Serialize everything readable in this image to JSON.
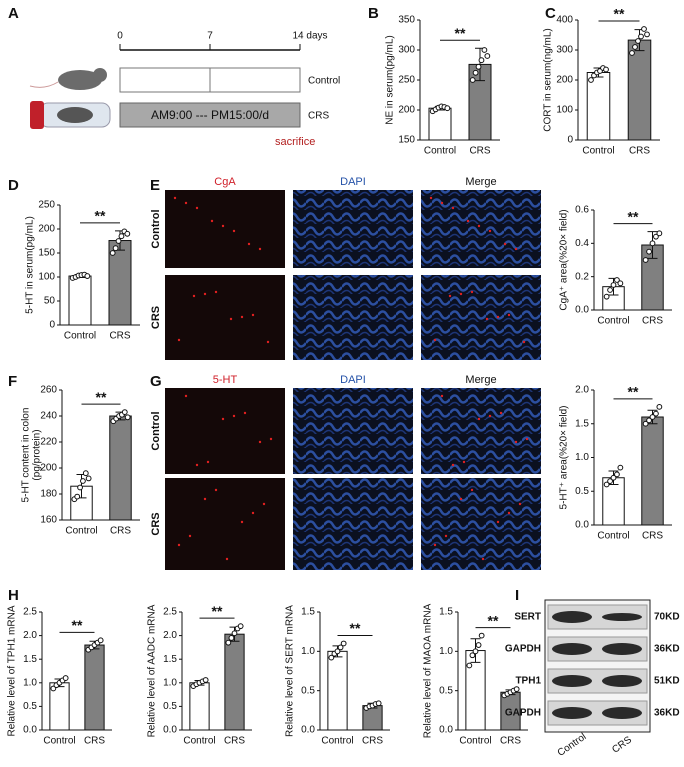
{
  "panel_labels": [
    "A",
    "B",
    "C",
    "D",
    "E",
    "F",
    "G",
    "H",
    "I"
  ],
  "timeline": {
    "day_labels": [
      "0",
      "7",
      "14 days"
    ],
    "groups": [
      "Control",
      "CRS"
    ],
    "schedule": "AM9:00 --- PM15:00/d",
    "endpoint": "sacrifice"
  },
  "image_panels": [
    {
      "stains": [
        "CgA",
        "DAPI",
        "Merge"
      ],
      "rows": [
        "Control",
        "CRS"
      ]
    },
    {
      "stains": [
        "5-HT",
        "DAPI",
        "Merge"
      ],
      "rows": [
        "Control",
        "CRS"
      ]
    }
  ],
  "blot": {
    "proteins": [
      "SERT",
      "GAPDH",
      "TPH1",
      "GAPDH"
    ],
    "sizes": [
      "70KD",
      "36KD",
      "51KD",
      "36KD"
    ],
    "lanes": [
      "Control",
      "CRS"
    ]
  },
  "chart_data": [
    {
      "type": "bar",
      "ylabel": "NE in serum(pg/mL)",
      "categories": [
        "Control",
        "CRS"
      ],
      "values": [
        203,
        276
      ],
      "errors": [
        3,
        27
      ],
      "points": [
        [
          198,
          201,
          204,
          206,
          205,
          203
        ],
        [
          250,
          262,
          272,
          283,
          300,
          290
        ]
      ],
      "colors": [
        "#ffffff",
        "#808080"
      ],
      "ylim": [
        150,
        350
      ],
      "yticks": [
        150,
        200,
        250,
        300,
        350
      ],
      "significance": "**"
    },
    {
      "type": "bar",
      "ylabel": "CORT in serum(ng/mL)",
      "categories": [
        "Control",
        "CRS"
      ],
      "values": [
        225,
        333
      ],
      "errors": [
        15,
        35
      ],
      "points": [
        [
          200,
          215,
          225,
          230,
          240,
          235
        ],
        [
          290,
          310,
          330,
          345,
          370,
          352
        ]
      ],
      "colors": [
        "#ffffff",
        "#808080"
      ],
      "ylim": [
        0,
        400
      ],
      "yticks": [
        0,
        100,
        200,
        300,
        400
      ],
      "significance": "**"
    },
    {
      "type": "bar",
      "ylabel": "5-HT in serum(pg/mL)",
      "categories": [
        "Control",
        "CRS"
      ],
      "values": [
        102,
        176
      ],
      "errors": [
        3,
        20
      ],
      "points": [
        [
          98,
          100,
          103,
          104,
          105,
          102
        ],
        [
          150,
          160,
          175,
          185,
          195,
          190
        ]
      ],
      "colors": [
        "#ffffff",
        "#808080"
      ],
      "ylim": [
        0,
        250
      ],
      "yticks": [
        0,
        50,
        100,
        150,
        200,
        250
      ],
      "significance": "**"
    },
    {
      "type": "bar",
      "ylabel": "5-HT content in colon",
      "ylabel2": "(pg/protein)",
      "categories": [
        "Control",
        "CRS"
      ],
      "values": [
        186,
        240
      ],
      "errors": [
        9,
        3
      ],
      "points": [
        [
          176,
          178,
          185,
          190,
          196,
          192
        ],
        [
          236,
          238,
          240,
          241,
          243,
          239
        ]
      ],
      "colors": [
        "#ffffff",
        "#808080"
      ],
      "ylim": [
        160,
        260
      ],
      "yticks": [
        160,
        180,
        200,
        220,
        240,
        260
      ],
      "significance": "**"
    },
    {
      "type": "bar",
      "ylabel": "CgA⁺ area(%20× field)",
      "categories": [
        "Control",
        "CRS"
      ],
      "values": [
        0.14,
        0.39
      ],
      "errors": [
        0.05,
        0.08
      ],
      "points": [
        [
          0.08,
          0.12,
          0.15,
          0.18,
          0.16
        ],
        [
          0.3,
          0.35,
          0.4,
          0.44,
          0.46
        ]
      ],
      "colors": [
        "#ffffff",
        "#808080"
      ],
      "ylim": [
        0,
        0.6
      ],
      "yticks": [
        {
          "value": 0,
          "label": "0.0"
        },
        0.2,
        0.4,
        0.6
      ],
      "significance": "**"
    },
    {
      "type": "bar",
      "ylabel": "5-HT⁺ area(%20× field)",
      "categories": [
        "Control",
        "CRS"
      ],
      "values": [
        0.7,
        1.6
      ],
      "errors": [
        0.1,
        0.1
      ],
      "points": [
        [
          0.6,
          0.65,
          0.7,
          0.75,
          0.85
        ],
        [
          1.5,
          1.55,
          1.6,
          1.65,
          1.75
        ]
      ],
      "colors": [
        "#ffffff",
        "#808080"
      ],
      "ylim": [
        0,
        2
      ],
      "yticks": [
        {
          "value": 0,
          "label": "0.0"
        },
        0.5,
        {
          "value": 1,
          "label": "1.0"
        },
        1.5,
        {
          "value": 2,
          "label": "2.0"
        }
      ],
      "significance": "**"
    },
    {
      "type": "bar",
      "ylabel": "Relative level of TPH1 mRNA",
      "categories": [
        "Control",
        "CRS"
      ],
      "values": [
        1.0,
        1.8
      ],
      "errors": [
        0.08,
        0.08
      ],
      "points": [
        [
          0.88,
          0.95,
          1.0,
          1.05,
          1.1
        ],
        [
          1.7,
          1.75,
          1.8,
          1.85,
          1.9
        ]
      ],
      "colors": [
        "#ffffff",
        "#808080"
      ],
      "ylim": [
        0,
        2.5
      ],
      "yticks": [
        {
          "value": 0,
          "label": "0.0"
        },
        0.5,
        {
          "value": 1,
          "label": "1.0"
        },
        1.5,
        {
          "value": 2,
          "label": "2.0"
        },
        2.5
      ],
      "significance": "**"
    },
    {
      "type": "bar",
      "ylabel": "Relative level of  AADC mRNA",
      "categories": [
        "Control",
        "CRS"
      ],
      "values": [
        1.0,
        2.03
      ],
      "errors": [
        0.05,
        0.15
      ],
      "points": [
        [
          0.93,
          0.97,
          1.0,
          1.03,
          1.06
        ],
        [
          1.85,
          1.95,
          2.05,
          2.15,
          2.2
        ]
      ],
      "colors": [
        "#ffffff",
        "#808080"
      ],
      "ylim": [
        0,
        2.5
      ],
      "yticks": [
        {
          "value": 0,
          "label": "0.0"
        },
        0.5,
        {
          "value": 1,
          "label": "1.0"
        },
        1.5,
        {
          "value": 2,
          "label": "2.0"
        },
        2.5
      ],
      "significance": "**"
    },
    {
      "type": "bar",
      "ylabel": "Relative level of SERT mRNA",
      "categories": [
        "Control",
        "CRS"
      ],
      "values": [
        1.0,
        0.31
      ],
      "errors": [
        0.07,
        0.03
      ],
      "points": [
        [
          0.92,
          0.97,
          1.0,
          1.05,
          1.1
        ],
        [
          0.28,
          0.3,
          0.31,
          0.33,
          0.34
        ]
      ],
      "colors": [
        "#ffffff",
        "#808080"
      ],
      "ylim": [
        0,
        1.5
      ],
      "yticks": [
        {
          "value": 0,
          "label": "0.0"
        },
        0.5,
        {
          "value": 1,
          "label": "1.0"
        },
        1.5
      ],
      "significance": "**"
    },
    {
      "type": "bar",
      "ylabel": "Relative level of MAOA mRNA",
      "categories": [
        "Control",
        "CRS"
      ],
      "values": [
        1.01,
        0.48
      ],
      "errors": [
        0.15,
        0.03
      ],
      "points": [
        [
          0.82,
          0.95,
          1.0,
          1.08,
          1.2
        ],
        [
          0.44,
          0.46,
          0.48,
          0.5,
          0.52
        ]
      ],
      "colors": [
        "#ffffff",
        "#808080"
      ],
      "ylim": [
        0,
        1.5
      ],
      "yticks": [
        {
          "value": 0,
          "label": "0.0"
        },
        0.5,
        {
          "value": 1,
          "label": "1.0"
        },
        1.5
      ],
      "significance": "**"
    }
  ]
}
